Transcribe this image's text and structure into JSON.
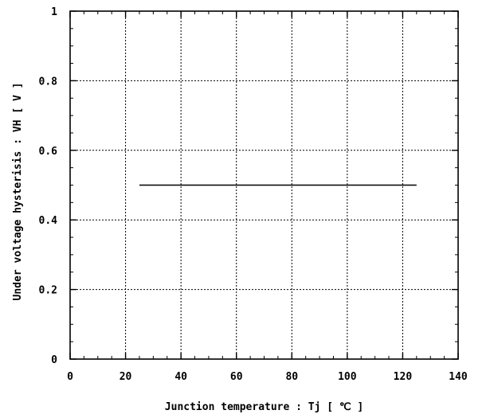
{
  "chart_data": {
    "type": "line",
    "title": "",
    "xlabel": "Junction temperature : Tj [ ℃ ]",
    "ylabel": "Under voltage hysterisis : VH [ V ]",
    "xlim": [
      0,
      140
    ],
    "ylim": [
      0,
      1
    ],
    "xticks": [
      0,
      20,
      40,
      60,
      80,
      100,
      120,
      140
    ],
    "yticks": [
      0,
      0.2,
      0.4,
      0.6,
      0.8,
      1
    ],
    "xtick_labels": [
      "0",
      "20",
      "40",
      "60",
      "80",
      "100",
      "120",
      "140"
    ],
    "ytick_labels": [
      "0",
      "0.2",
      "0.4",
      "0.6",
      "0.8",
      "1"
    ],
    "x_minor_step": 5,
    "y_minor_step": 0.05,
    "grid": true,
    "grid_style": "dotted",
    "series": [
      {
        "x": [
          25,
          125
        ],
        "y": [
          0.5,
          0.5
        ],
        "color": "#000000"
      }
    ]
  }
}
